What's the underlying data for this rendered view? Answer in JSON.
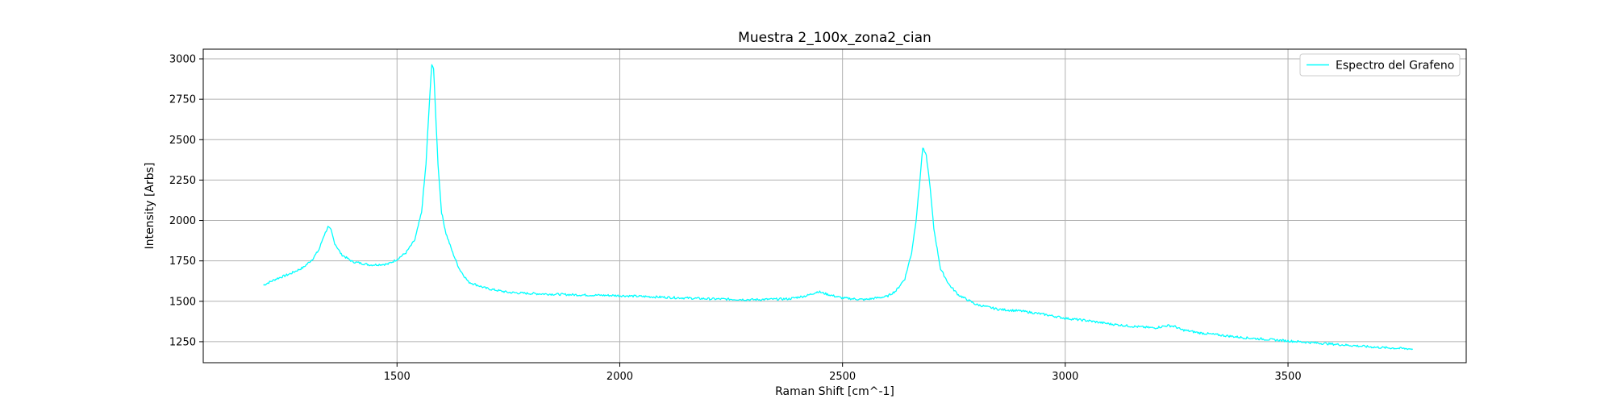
{
  "chart_data": {
    "type": "line",
    "title": "Muestra 2_100x_zona2_cian",
    "xlabel": "Raman Shift [cm^-1]",
    "ylabel": "Intensity [Arbs]",
    "xlim": [
      1065,
      3900
    ],
    "ylim": [
      1120,
      3060
    ],
    "xticks": [
      1500,
      2000,
      2500,
      3000,
      3500
    ],
    "yticks": [
      1250,
      1500,
      1750,
      2000,
      2250,
      2500,
      2750,
      3000
    ],
    "grid": true,
    "legend_position": "top-right",
    "series": [
      {
        "name": "Espectro del Grafeno",
        "color": "#00ffff",
        "x": [
          1200,
          1230,
          1260,
          1290,
          1310,
          1325,
          1335,
          1345,
          1352,
          1360,
          1375,
          1400,
          1440,
          1480,
          1500,
          1520,
          1540,
          1555,
          1565,
          1572,
          1578,
          1582,
          1586,
          1592,
          1600,
          1610,
          1625,
          1640,
          1660,
          1700,
          1750,
          1800,
          1900,
          2000,
          2100,
          2200,
          2300,
          2380,
          2420,
          2445,
          2470,
          2500,
          2550,
          2600,
          2620,
          2640,
          2655,
          2665,
          2672,
          2680,
          2688,
          2695,
          2705,
          2720,
          2740,
          2760,
          2800,
          2850,
          2900,
          2950,
          3000,
          3050,
          3100,
          3150,
          3200,
          3230,
          3245,
          3260,
          3300,
          3350,
          3400,
          3450,
          3500,
          3550,
          3600,
          3650,
          3700,
          3780
        ],
        "values": [
          1600,
          1640,
          1670,
          1710,
          1760,
          1820,
          1900,
          1960,
          1940,
          1860,
          1790,
          1745,
          1725,
          1730,
          1760,
          1800,
          1880,
          2050,
          2350,
          2700,
          2970,
          2940,
          2700,
          2350,
          2050,
          1920,
          1800,
          1700,
          1620,
          1580,
          1555,
          1548,
          1540,
          1535,
          1525,
          1515,
          1510,
          1515,
          1535,
          1560,
          1540,
          1520,
          1510,
          1530,
          1565,
          1640,
          1800,
          2000,
          2200,
          2450,
          2400,
          2250,
          1950,
          1700,
          1600,
          1540,
          1480,
          1450,
          1440,
          1420,
          1395,
          1380,
          1360,
          1345,
          1335,
          1350,
          1345,
          1325,
          1305,
          1290,
          1275,
          1265,
          1255,
          1245,
          1235,
          1225,
          1215,
          1205
        ]
      }
    ]
  }
}
